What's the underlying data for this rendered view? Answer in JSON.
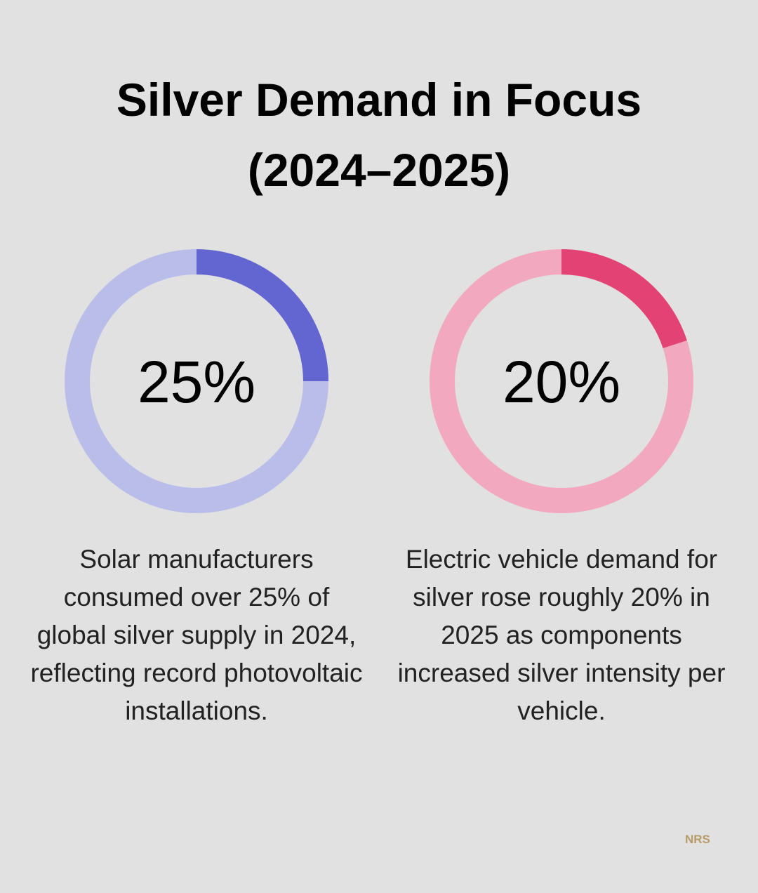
{
  "title": "Silver Demand in Focus (2024–2025)",
  "chart_data": [
    {
      "type": "donut",
      "values": [
        25
      ],
      "value_labels": [
        "25%"
      ],
      "color": "#6366d1",
      "track_color": "#babdea",
      "description": "Solar manufacturers consumed over 25% of global silver supply in 2024, reflecting record photovoltaic installations."
    },
    {
      "type": "donut",
      "values": [
        20
      ],
      "value_labels": [
        "20%"
      ],
      "color": "#e24374",
      "track_color": "#f2a8bf",
      "description": "Electric vehicle demand for silver rose roughly 20% in 2025 as components increased silver intensity per vehicle."
    }
  ],
  "logo": "NRS"
}
